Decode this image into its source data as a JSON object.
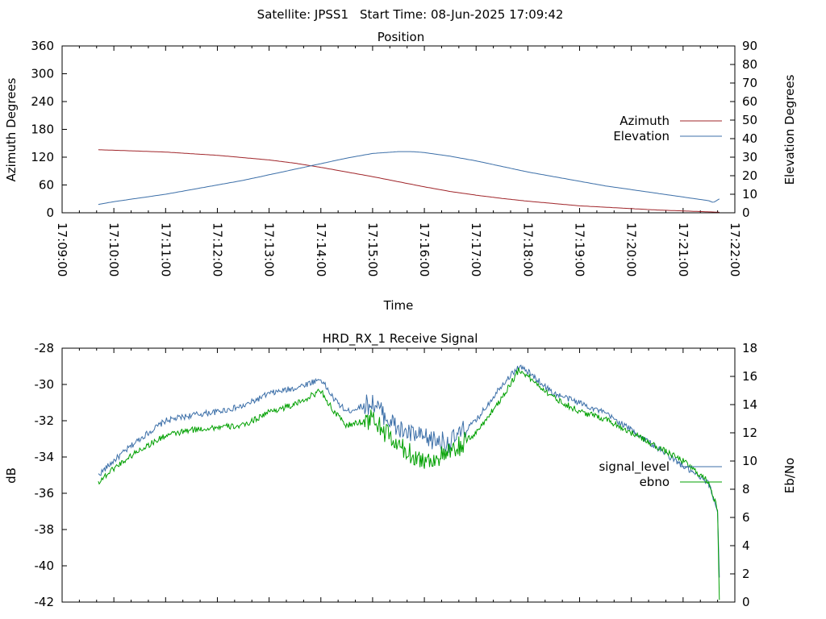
{
  "header": {
    "satellite": "Satellite: JPSS1",
    "start_time": "Start Time: 08-Jun-2025 17:09:42"
  },
  "chart_data": [
    {
      "type": "line",
      "title": "Position",
      "xlabel": "Time",
      "ylabel": "Azimuth Degrees",
      "y2label": "Elevation Degrees",
      "xlim": [
        "17:09:00",
        "17:22:00"
      ],
      "ylim": [
        0,
        360
      ],
      "y2lim": [
        0,
        90
      ],
      "x_ticks": [
        "17:09:00",
        "17:10:00",
        "17:11:00",
        "17:12:00",
        "17:13:00",
        "17:14:00",
        "17:15:00",
        "17:16:00",
        "17:17:00",
        "17:18:00",
        "17:19:00",
        "17:20:00",
        "17:21:00",
        "17:22:00"
      ],
      "y_ticks": [
        0,
        60,
        120,
        180,
        240,
        300,
        360
      ],
      "y2_ticks": [
        0,
        10,
        20,
        30,
        40,
        50,
        60,
        70,
        80,
        90
      ],
      "legend_position": "right",
      "series": [
        {
          "name": "Azimuth",
          "axis": "left",
          "color": "#a0252a",
          "x": [
            "17:09:42",
            "17:10:00",
            "17:11:00",
            "17:12:00",
            "17:13:00",
            "17:13:30",
            "17:14:00",
            "17:14:30",
            "17:15:00",
            "17:15:30",
            "17:16:00",
            "17:16:30",
            "17:17:00",
            "17:17:30",
            "17:18:00",
            "17:18:30",
            "17:19:00",
            "17:19:30",
            "17:20:00",
            "17:20:30",
            "17:21:00",
            "17:21:30",
            "17:21:42"
          ],
          "values": [
            136,
            135,
            131,
            124,
            114,
            107,
            98,
            88,
            78,
            67,
            56,
            46,
            38,
            31,
            25,
            20,
            15,
            12,
            9,
            6,
            4,
            2,
            1
          ]
        },
        {
          "name": "Elevation",
          "axis": "right",
          "color": "#3c6fa8",
          "x": [
            "17:09:42",
            "17:10:00",
            "17:10:30",
            "17:11:00",
            "17:11:30",
            "17:12:00",
            "17:12:30",
            "17:13:00",
            "17:13:30",
            "17:14:00",
            "17:14:30",
            "17:15:00",
            "17:15:30",
            "17:15:45",
            "17:16:00",
            "17:16:30",
            "17:17:00",
            "17:17:30",
            "17:18:00",
            "17:18:30",
            "17:19:00",
            "17:19:30",
            "17:20:00",
            "17:20:30",
            "17:21:00",
            "17:21:30",
            "17:21:35",
            "17:21:42"
          ],
          "values": [
            4.5,
            6,
            8,
            10,
            12.5,
            15,
            17.5,
            20.5,
            23.5,
            26.5,
            29.5,
            32,
            33,
            33,
            32.5,
            30.5,
            28,
            25,
            22,
            19.5,
            17,
            14.5,
            12.5,
            10.5,
            8.5,
            6.5,
            5.5,
            7.5
          ]
        }
      ]
    },
    {
      "type": "line",
      "title": "HRD_RX_1 Receive Signal",
      "xlabel": "",
      "ylabel": "dB",
      "y2label": "Eb/No",
      "xlim": [
        "17:09:00",
        "17:22:00"
      ],
      "ylim": [
        -42,
        -28
      ],
      "y2lim": [
        0,
        18
      ],
      "y_ticks": [
        -42,
        -40,
        -38,
        -36,
        -34,
        -32,
        -30,
        -28
      ],
      "y2_ticks": [
        0,
        2,
        4,
        6,
        8,
        10,
        12,
        14,
        16,
        18
      ],
      "legend_position": "right",
      "series": [
        {
          "name": "signal_level",
          "axis": "left",
          "color": "#3c6fa8",
          "x": [
            "17:09:42",
            "17:10:00",
            "17:10:30",
            "17:11:00",
            "17:11:30",
            "17:12:00",
            "17:12:30",
            "17:13:00",
            "17:13:30",
            "17:14:00",
            "17:14:15",
            "17:14:30",
            "17:15:00",
            "17:15:30",
            "17:16:00",
            "17:16:30",
            "17:17:00",
            "17:17:30",
            "17:17:50",
            "17:18:00",
            "17:18:30",
            "17:19:00",
            "17:19:30",
            "17:20:00",
            "17:20:30",
            "17:21:00",
            "17:21:30",
            "17:21:40",
            "17:21:42"
          ],
          "values": [
            -35,
            -34.2,
            -33,
            -32,
            -31.7,
            -31.5,
            -31.2,
            -30.5,
            -30.2,
            -29.7,
            -30.8,
            -31.5,
            -31,
            -32.5,
            -33,
            -33.2,
            -32,
            -30,
            -29,
            -29.3,
            -30.5,
            -31,
            -31.6,
            -32.5,
            -33.5,
            -34.5,
            -35.5,
            -37,
            -40.5
          ]
        },
        {
          "name": "ebno",
          "axis": "right",
          "color": "#00a000",
          "x": [
            "17:09:42",
            "17:10:00",
            "17:10:30",
            "17:11:00",
            "17:11:30",
            "17:12:00",
            "17:12:30",
            "17:13:00",
            "17:13:30",
            "17:14:00",
            "17:14:15",
            "17:14:30",
            "17:15:00",
            "17:15:30",
            "17:16:00",
            "17:16:30",
            "17:17:00",
            "17:17:30",
            "17:17:50",
            "17:18:00",
            "17:18:30",
            "17:19:00",
            "17:19:30",
            "17:20:00",
            "17:20:30",
            "17:21:00",
            "17:21:30",
            "17:21:40",
            "17:21:42"
          ],
          "values": [
            8.5,
            9.5,
            10.8,
            11.8,
            12.2,
            12.4,
            12.5,
            13.5,
            14,
            15,
            13.5,
            12.5,
            13,
            11,
            10,
            10.5,
            12,
            14.5,
            16.5,
            16,
            14.5,
            13.5,
            13,
            12,
            11,
            10,
            8.5,
            6.5,
            0
          ]
        }
      ]
    }
  ]
}
